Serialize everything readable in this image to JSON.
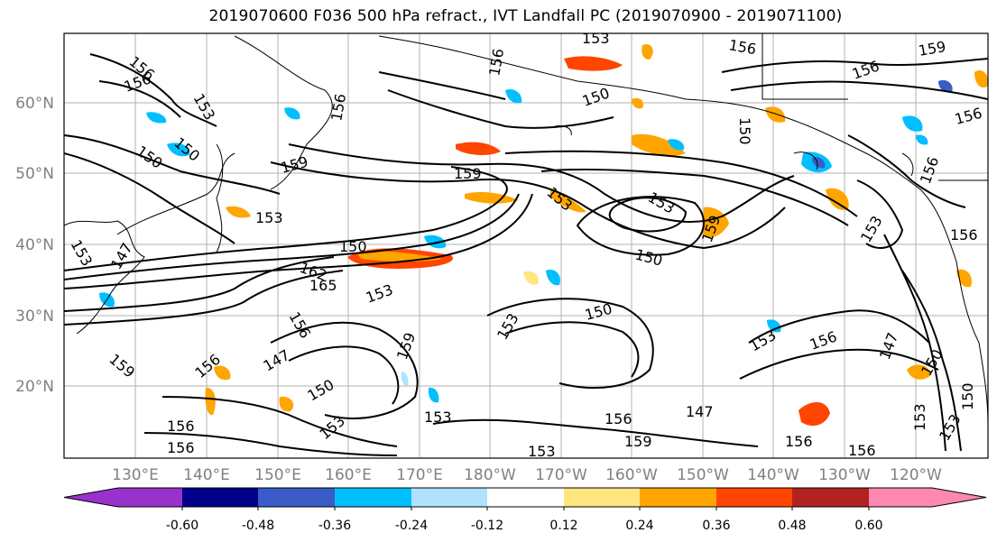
{
  "title": "2019070600 F036 500 hPa refract., IVT Landfall PC (2019070900 - 2019071100)",
  "latitude_labels": [
    "60°N",
    "50°N",
    "40°N",
    "30°N",
    "20°N"
  ],
  "longitude_labels": [
    "130°E",
    "140°E",
    "150°E",
    "160°E",
    "170°E",
    "180°W",
    "170°W",
    "160°W",
    "150°W",
    "140°W",
    "130°W",
    "120°W"
  ],
  "contour_labels": [
    "156",
    "153",
    "150",
    "147",
    "159",
    "162",
    "165"
  ],
  "colorbar": {
    "colors": [
      "#9932cc",
      "#00008b",
      "#3a5cc8",
      "#00bfff",
      "#b0e2ff",
      "#ffffff",
      "#ffe680",
      "#ffa500",
      "#ff4500",
      "#b22222",
      "#ff88b0"
    ],
    "tick_labels": [
      "-0.60",
      "-0.48",
      "-0.36",
      "-0.24",
      "-0.12",
      "0.12",
      "0.24",
      "0.36",
      "0.48",
      "0.60"
    ]
  }
}
